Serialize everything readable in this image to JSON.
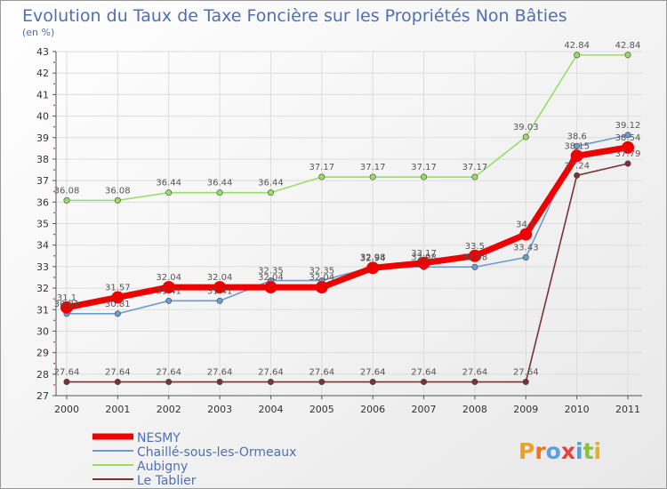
{
  "chart_data": {
    "type": "line",
    "title": "Evolution du Taux de Taxe Foncière sur les Propriétés Non Bâties",
    "subtitle": "(en %)",
    "xlabel": "",
    "ylabel": "",
    "ylim": [
      27,
      43
    ],
    "yticks": [
      27,
      28,
      29,
      30,
      31,
      32,
      33,
      34,
      35,
      36,
      37,
      38,
      39,
      40,
      41,
      42,
      43
    ],
    "categories": [
      "2000",
      "2001",
      "2002",
      "2003",
      "2004",
      "2005",
      "2006",
      "2007",
      "2008",
      "2009",
      "2010",
      "2011"
    ],
    "series": [
      {
        "name": "NESMY",
        "color": "#ee0000",
        "values": [
          31.1,
          31.57,
          32.04,
          32.04,
          32.04,
          32.04,
          32.94,
          33.17,
          33.5,
          34.5,
          38.15,
          38.54
        ],
        "labels": [
          "31.1",
          "31.57",
          "32.04",
          "32.04",
          "32.04",
          "32.04",
          "32.94",
          "33.17",
          "33.5",
          "34.5",
          "38.15",
          "38.54"
        ]
      },
      {
        "name": "Chaillé-sous-les-Ormeaux",
        "color": "#6a9bd1",
        "values": [
          30.81,
          30.81,
          31.41,
          31.41,
          32.35,
          32.35,
          32.98,
          32.98,
          32.98,
          33.43,
          38.6,
          39.12
        ],
        "labels": [
          "30.81",
          "30.81",
          "31.41",
          "31.41",
          "32.35",
          "32.35",
          "32.98",
          "32.98",
          "32.98",
          "33.43",
          "38.6",
          "39.12"
        ]
      },
      {
        "name": "Aubigny",
        "color": "#99dd66",
        "values": [
          36.08,
          36.08,
          36.44,
          36.44,
          36.44,
          37.17,
          37.17,
          37.17,
          37.17,
          39.03,
          42.84,
          42.84
        ],
        "labels": [
          "36.08",
          "36.08",
          "36.44",
          "36.44",
          "36.44",
          "37.17",
          "37.17",
          "37.17",
          "37.17",
          "39.03",
          "42.84",
          "42.84"
        ]
      },
      {
        "name": "Le Tablier",
        "color": "#7a3333",
        "values": [
          27.64,
          27.64,
          27.64,
          27.64,
          27.64,
          27.64,
          27.64,
          27.64,
          27.64,
          27.64,
          37.24,
          37.79
        ],
        "labels": [
          "27.64",
          "27.64",
          "27.64",
          "27.64",
          "27.64",
          "27.64",
          "27.64",
          "27.64",
          "27.64",
          "27.64",
          "37.24",
          "37.79"
        ]
      }
    ],
    "legend": {
      "placement": "bottom-left",
      "entries": [
        "NESMY",
        "Chaillé-sous-les-Ormeaux",
        "Aubigny",
        "Le Tablier"
      ]
    },
    "logo_text": "Proxiti"
  }
}
